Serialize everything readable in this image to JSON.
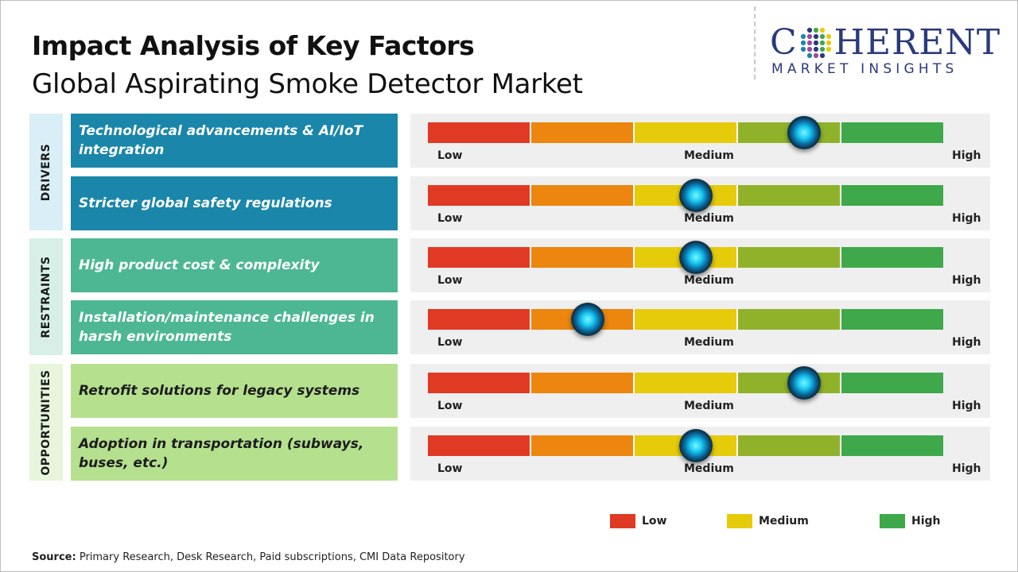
{
  "title": "Impact Analysis of Key Factors",
  "subtitle": "Global Aspirating Smoke Detector Market",
  "logo": {
    "top": "COHERENT",
    "bottom": "MARKET INSIGHTS"
  },
  "categories": [
    {
      "label": "DRIVERS",
      "color": "#d9eef6"
    },
    {
      "label": "RESTRAINTS",
      "color": "#d7efe6"
    },
    {
      "label": "OPPORTUNITIES",
      "color": "#e6f5dc"
    }
  ],
  "scale_colors": [
    "#e03a24",
    "#ec860e",
    "#e6cb0b",
    "#8fb22a",
    "#3ea84a"
  ],
  "scale_labels": {
    "low": "Low",
    "medium": "Medium",
    "high": "High"
  },
  "factors": [
    {
      "text": "Technological advancements & AI/IoT integration",
      "category": "DRIVERS",
      "impact": 0.73,
      "bg": "#1a86aa",
      "fg": "#ffffff"
    },
    {
      "text": "Stricter global safety regulations",
      "category": "DRIVERS",
      "impact": 0.52,
      "bg": "#1a86aa",
      "fg": "#ffffff"
    },
    {
      "text": "High product cost & complexity",
      "category": "RESTRAINTS",
      "impact": 0.52,
      "bg": "#4db793",
      "fg": "#ffffff"
    },
    {
      "text": "Installation/maintenance challenges in harsh environments",
      "category": "RESTRAINTS",
      "impact": 0.31,
      "bg": "#4db793",
      "fg": "#ffffff"
    },
    {
      "text": "Retrofit solutions for legacy systems",
      "category": "OPPORTUNITIES",
      "impact": 0.73,
      "bg": "#b5e08e",
      "fg": "#1c1c1c"
    },
    {
      "text": "Adoption in transportation (subways, buses, etc.)",
      "category": "OPPORTUNITIES",
      "impact": 0.52,
      "bg": "#b5e08e",
      "fg": "#1c1c1c"
    }
  ],
  "legend": [
    {
      "label": "Low",
      "color": "#e03a24"
    },
    {
      "label": "Medium",
      "color": "#e6cb0b"
    },
    {
      "label": "High",
      "color": "#3ea84a"
    }
  ],
  "source": {
    "label": "Source:",
    "text": "Primary Research, Desk Research, Paid subscriptions, CMI Data Repository"
  }
}
